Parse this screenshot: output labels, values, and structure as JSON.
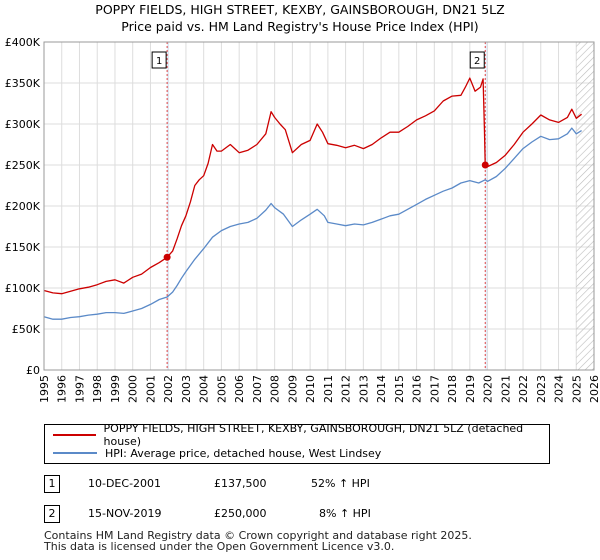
{
  "chart_data": {
    "type": "line",
    "title": "POPPY FIELDS, HIGH STREET, KEXBY, GAINSBOROUGH, DN21 5LZ",
    "subtitle": "Price paid vs. HM Land Registry's House Price Index (HPI)",
    "xlim": [
      1995,
      2026
    ],
    "ylim": [
      0,
      400000
    ],
    "x_ticks": [
      "1995",
      "1996",
      "1997",
      "1998",
      "1999",
      "2000",
      "2001",
      "2002",
      "2003",
      "2004",
      "2005",
      "2006",
      "2007",
      "2008",
      "2009",
      "2010",
      "2011",
      "2012",
      "2013",
      "2014",
      "2015",
      "2016",
      "2017",
      "2018",
      "2019",
      "2020",
      "2021",
      "2022",
      "2023",
      "2024",
      "2025",
      "2026"
    ],
    "y_ticks": [
      {
        "value": 0,
        "label": "£0"
      },
      {
        "value": 50000,
        "label": "£50K"
      },
      {
        "value": 100000,
        "label": "£100K"
      },
      {
        "value": 150000,
        "label": "£150K"
      },
      {
        "value": 200000,
        "label": "£200K"
      },
      {
        "value": 250000,
        "label": "£250K"
      },
      {
        "value": 300000,
        "label": "£300K"
      },
      {
        "value": 350000,
        "label": "£350K"
      },
      {
        "value": 400000,
        "label": "£400K"
      }
    ],
    "shade_periods": [
      [
        2001.94,
        2002.05
      ],
      [
        2019.87,
        2019.98
      ]
    ],
    "forecast_start": 2025.0,
    "series": [
      {
        "name": "POPPY FIELDS, HIGH STREET, KEXBY, GAINSBOROUGH, DN21 5LZ (detached house)",
        "color": "#cc0000",
        "points": [
          [
            1995.0,
            97000
          ],
          [
            1995.5,
            94000
          ],
          [
            1996.0,
            93000
          ],
          [
            1996.5,
            96000
          ],
          [
            1997.0,
            99000
          ],
          [
            1997.5,
            101000
          ],
          [
            1998.0,
            104000
          ],
          [
            1998.5,
            108000
          ],
          [
            1999.0,
            110000
          ],
          [
            1999.5,
            106000
          ],
          [
            2000.0,
            113000
          ],
          [
            2000.5,
            117000
          ],
          [
            2001.0,
            125000
          ],
          [
            2001.5,
            131000
          ],
          [
            2001.94,
            137500
          ],
          [
            2002.25,
            145000
          ],
          [
            2002.5,
            160000
          ],
          [
            2002.75,
            176000
          ],
          [
            2003.0,
            188000
          ],
          [
            2003.25,
            205000
          ],
          [
            2003.5,
            225000
          ],
          [
            2003.75,
            232000
          ],
          [
            2004.0,
            237000
          ],
          [
            2004.25,
            252000
          ],
          [
            2004.5,
            275000
          ],
          [
            2004.75,
            267000
          ],
          [
            2005.0,
            267000
          ],
          [
            2005.5,
            275000
          ],
          [
            2006.0,
            265000
          ],
          [
            2006.5,
            268000
          ],
          [
            2007.0,
            275000
          ],
          [
            2007.5,
            288000
          ],
          [
            2007.8,
            315000
          ],
          [
            2008.0,
            308000
          ],
          [
            2008.3,
            300000
          ],
          [
            2008.6,
            293000
          ],
          [
            2009.0,
            265000
          ],
          [
            2009.5,
            275000
          ],
          [
            2010.0,
            280000
          ],
          [
            2010.4,
            300000
          ],
          [
            2010.7,
            290000
          ],
          [
            2011.0,
            276000
          ],
          [
            2011.5,
            274000
          ],
          [
            2012.0,
            271000
          ],
          [
            2012.5,
            274000
          ],
          [
            2013.0,
            270000
          ],
          [
            2013.5,
            275000
          ],
          [
            2014.0,
            283000
          ],
          [
            2014.5,
            290000
          ],
          [
            2015.0,
            290000
          ],
          [
            2015.5,
            297000
          ],
          [
            2016.0,
            305000
          ],
          [
            2016.5,
            310000
          ],
          [
            2017.0,
            316000
          ],
          [
            2017.5,
            328000
          ],
          [
            2018.0,
            334000
          ],
          [
            2018.5,
            335000
          ],
          [
            2018.75,
            345000
          ],
          [
            2019.0,
            356000
          ],
          [
            2019.3,
            340000
          ],
          [
            2019.6,
            345000
          ],
          [
            2019.75,
            355000
          ],
          [
            2019.83,
            290000
          ],
          [
            2019.87,
            250000
          ],
          [
            2020.0,
            248000
          ],
          [
            2020.5,
            253000
          ],
          [
            2021.0,
            262000
          ],
          [
            2021.5,
            275000
          ],
          [
            2022.0,
            290000
          ],
          [
            2022.5,
            300000
          ],
          [
            2023.0,
            311000
          ],
          [
            2023.5,
            305000
          ],
          [
            2024.0,
            302000
          ],
          [
            2024.5,
            308000
          ],
          [
            2024.75,
            318000
          ],
          [
            2025.0,
            307000
          ],
          [
            2025.3,
            312000
          ]
        ]
      },
      {
        "name": "HPI: Average price, detached house, West Lindsey",
        "color": "#5b8ac8",
        "points": [
          [
            1995.0,
            65000
          ],
          [
            1995.5,
            62000
          ],
          [
            1996.0,
            62000
          ],
          [
            1996.5,
            64000
          ],
          [
            1997.0,
            65000
          ],
          [
            1997.5,
            67000
          ],
          [
            1998.0,
            68000
          ],
          [
            1998.5,
            70000
          ],
          [
            1999.0,
            70000
          ],
          [
            1999.5,
            69000
          ],
          [
            2000.0,
            72000
          ],
          [
            2000.5,
            75000
          ],
          [
            2001.0,
            80000
          ],
          [
            2001.5,
            86000
          ],
          [
            2001.94,
            89000
          ],
          [
            2002.25,
            95000
          ],
          [
            2002.5,
            103000
          ],
          [
            2002.75,
            112000
          ],
          [
            2003.0,
            120000
          ],
          [
            2003.5,
            135000
          ],
          [
            2004.0,
            148000
          ],
          [
            2004.5,
            162000
          ],
          [
            2005.0,
            170000
          ],
          [
            2005.5,
            175000
          ],
          [
            2006.0,
            178000
          ],
          [
            2006.5,
            180000
          ],
          [
            2007.0,
            185000
          ],
          [
            2007.5,
            195000
          ],
          [
            2007.8,
            203000
          ],
          [
            2008.0,
            198000
          ],
          [
            2008.5,
            190000
          ],
          [
            2009.0,
            175000
          ],
          [
            2009.5,
            183000
          ],
          [
            2010.0,
            190000
          ],
          [
            2010.4,
            196000
          ],
          [
            2010.8,
            188000
          ],
          [
            2011.0,
            180000
          ],
          [
            2011.5,
            178000
          ],
          [
            2012.0,
            176000
          ],
          [
            2012.5,
            178000
          ],
          [
            2013.0,
            177000
          ],
          [
            2013.5,
            180000
          ],
          [
            2014.0,
            184000
          ],
          [
            2014.5,
            188000
          ],
          [
            2015.0,
            190000
          ],
          [
            2015.5,
            196000
          ],
          [
            2016.0,
            202000
          ],
          [
            2016.5,
            208000
          ],
          [
            2017.0,
            213000
          ],
          [
            2017.5,
            218000
          ],
          [
            2018.0,
            222000
          ],
          [
            2018.5,
            228000
          ],
          [
            2019.0,
            231000
          ],
          [
            2019.5,
            228000
          ],
          [
            2019.87,
            232000
          ],
          [
            2020.0,
            230000
          ],
          [
            2020.5,
            236000
          ],
          [
            2021.0,
            246000
          ],
          [
            2021.5,
            258000
          ],
          [
            2022.0,
            270000
          ],
          [
            2022.5,
            278000
          ],
          [
            2023.0,
            285000
          ],
          [
            2023.5,
            281000
          ],
          [
            2024.0,
            282000
          ],
          [
            2024.5,
            288000
          ],
          [
            2024.75,
            295000
          ],
          [
            2025.0,
            288000
          ],
          [
            2025.3,
            292000
          ]
        ]
      }
    ],
    "sales": [
      {
        "label": "1",
        "x": 2001.94,
        "y": 137500,
        "date": "10-DEC-2001",
        "price": "£137,500",
        "hpi_change": "52% ↑ HPI"
      },
      {
        "label": "2",
        "x": 2019.87,
        "y": 250000,
        "date": "15-NOV-2019",
        "price": "£250,000",
        "hpi_change": "8% ↑ HPI"
      }
    ],
    "legend_position": "below"
  },
  "footer": {
    "line1": "Contains HM Land Registry data © Crown copyright and database right 2025.",
    "line2": "This data is licensed under the Open Government Licence v3.0."
  }
}
